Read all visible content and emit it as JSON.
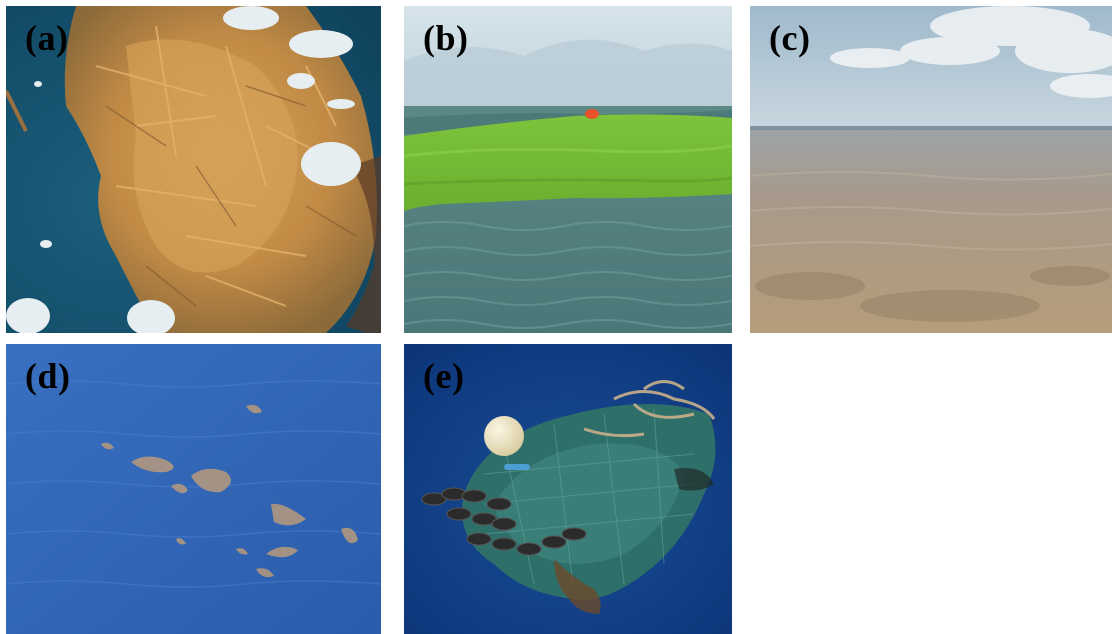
{
  "panels": [
    {
      "label": "(a)",
      "subject": "floating sargassum seaweed mat",
      "colors": {
        "water": "#16506a",
        "debris": "#c8914a",
        "foam": "#e6eef2"
      }
    },
    {
      "label": "(b)",
      "subject": "green algae bloom on sea surface",
      "colors": {
        "water": "#4f7f7e",
        "algae": "#78c838",
        "sky": "#c9dbe3"
      }
    },
    {
      "label": "(c)",
      "subject": "turbid brown coastal water",
      "colors": {
        "water": "#b59c83",
        "sky": "#a9c2d3",
        "cloud": "#e8eef2"
      }
    },
    {
      "label": "(d)",
      "subject": "brown slicks on blue open sea",
      "colors": {
        "water": "#2f64b6",
        "slick": "#b89a7c"
      }
    },
    {
      "label": "(e)",
      "subject": "floating derelict fishing net with buoy",
      "colors": {
        "water": "#0f3f86",
        "net": "#2f6f6a",
        "rope": "#c9b08a",
        "buoy": "#efe6c6"
      }
    }
  ]
}
